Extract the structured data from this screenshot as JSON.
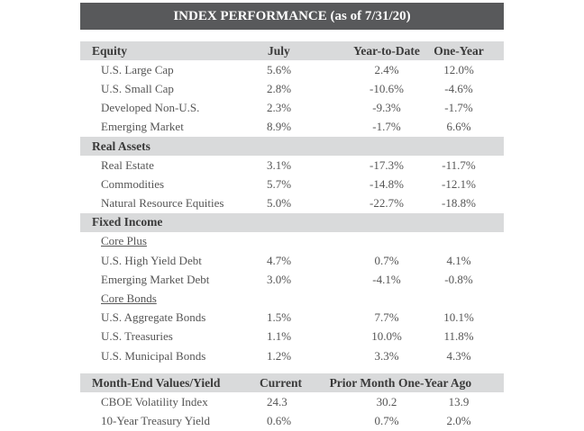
{
  "title": "INDEX PERFORMANCE (as of 7/31/20)",
  "header": {
    "label": "Equity",
    "col1": "July",
    "col2": "Year-to-Date",
    "col3": "One-Year"
  },
  "equity": [
    {
      "name": "U.S. Large Cap",
      "v1": "5.6%",
      "v2": "2.4%",
      "v3": "12.0%"
    },
    {
      "name": "U.S. Small Cap",
      "v1": "2.8%",
      "v2": "-10.6%",
      "v3": "-4.6%"
    },
    {
      "name": "Developed Non-U.S.",
      "v1": "2.3%",
      "v2": "-9.3%",
      "v3": "-1.7%"
    },
    {
      "name": "Emerging Market",
      "v1": "8.9%",
      "v2": "-1.7%",
      "v3": "6.6%"
    }
  ],
  "real_assets_label": "Real Assets",
  "real_assets": [
    {
      "name": "Real Estate",
      "v1": "3.1%",
      "v2": "-17.3%",
      "v3": "-11.7%"
    },
    {
      "name": "Commodities",
      "v1": "5.7%",
      "v2": "-14.8%",
      "v3": "-12.1%"
    },
    {
      "name": "Natural Resource Equities",
      "v1": "5.0%",
      "v2": "-22.7%",
      "v3": "-18.8%"
    }
  ],
  "fixed_income_label": "Fixed Income",
  "core_plus_label": "Core Plus",
  "core_plus": [
    {
      "name": "U.S. High Yield Debt",
      "v1": "4.7%",
      "v2": "0.7%",
      "v3": "4.1%"
    },
    {
      "name": "Emerging Market Debt",
      "v1": "3.0%",
      "v2": "-4.1%",
      "v3": "-0.8%"
    }
  ],
  "core_bonds_label": "Core Bonds",
  "core_bonds": [
    {
      "name": "U.S. Aggregate Bonds",
      "v1": "1.5%",
      "v2": "7.7%",
      "v3": "10.1%"
    },
    {
      "name": "U.S. Treasuries",
      "v1": "1.1%",
      "v2": "10.0%",
      "v3": "11.8%"
    },
    {
      "name": "U.S. Municipal Bonds",
      "v1": "1.2%",
      "v2": "3.3%",
      "v3": "4.3%"
    }
  ],
  "month_end": {
    "label": "Month-End Values/Yield",
    "col1": "Current",
    "col2": "Prior Month",
    "col3": "One-Year Ago"
  },
  "month_end_rows": [
    {
      "name": "CBOE Volatility Index",
      "v1": "24.3",
      "v2": "30.2",
      "v3": "13.9"
    },
    {
      "name": "10-Year Treasury Yield",
      "v1": "0.6%",
      "v2": "0.7%",
      "v3": "2.0%"
    }
  ]
}
